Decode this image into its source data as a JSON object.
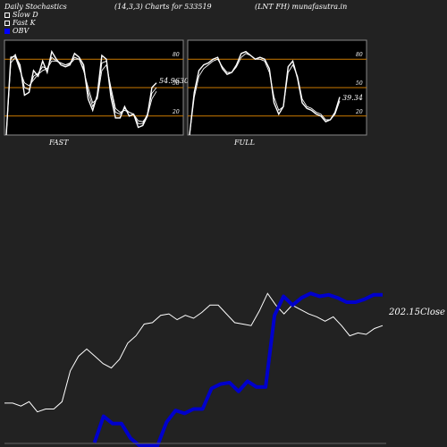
{
  "header": {
    "left": "Daily Stochastics",
    "middle": "(14,3,3) Charts for 533519",
    "right": "(LNT FH) munafasutra.in"
  },
  "legend": [
    {
      "label": "Slow  D",
      "color": "#ffffff"
    },
    {
      "label": "Fast K",
      "color": "#ffffff"
    },
    {
      "label": "OBV",
      "color": "#0000ff"
    }
  ],
  "colors": {
    "background": "#222222",
    "panel": "#000000",
    "level_line": "#cc7a00",
    "price": "#ffffff",
    "obv": "#0000cc"
  },
  "chart_data": [
    {
      "type": "line",
      "title": "FAST",
      "ylim": [
        0,
        100
      ],
      "levels": [
        20,
        50,
        80
      ],
      "tick_labels": [
        "80",
        "50",
        "20"
      ],
      "value_label": "54.9630",
      "series": [
        {
          "values": [
            0,
            82,
            83,
            74,
            42,
            45,
            68,
            62,
            78,
            66,
            88,
            80,
            74,
            72,
            74,
            86,
            82,
            74,
            38,
            26,
            42,
            84,
            80,
            40,
            18,
            18,
            30,
            20,
            22,
            8,
            10,
            20,
            50,
            55
          ]
        },
        {
          "values": [
            0,
            80,
            85,
            70,
            50,
            48,
            62,
            65,
            72,
            70,
            82,
            78,
            76,
            74,
            76,
            82,
            80,
            70,
            45,
            30,
            40,
            76,
            78,
            46,
            24,
            22,
            28,
            24,
            22,
            12,
            12,
            22,
            44,
            50
          ]
        },
        {
          "values": [
            0,
            76,
            82,
            68,
            55,
            52,
            58,
            64,
            68,
            70,
            78,
            78,
            76,
            74,
            75,
            80,
            80,
            68,
            50,
            34,
            38,
            68,
            74,
            50,
            28,
            24,
            26,
            24,
            22,
            15,
            14,
            20,
            38,
            46
          ]
        }
      ]
    },
    {
      "type": "line",
      "title": "FULL",
      "ylim": [
        0,
        100
      ],
      "levels": [
        20,
        50,
        80
      ],
      "tick_labels": [
        "80",
        "50",
        "20"
      ],
      "value_label": "39.34",
      "series": [
        {
          "values": [
            0,
            45,
            68,
            74,
            76,
            80,
            82,
            70,
            64,
            66,
            74,
            86,
            88,
            84,
            80,
            82,
            80,
            70,
            34,
            22,
            30,
            72,
            78,
            60,
            34,
            28,
            26,
            22,
            20,
            14,
            16,
            24,
            40
          ]
        },
        {
          "values": [
            0,
            40,
            62,
            70,
            74,
            78,
            80,
            72,
            66,
            66,
            72,
            82,
            86,
            84,
            80,
            80,
            78,
            66,
            40,
            26,
            30,
            66,
            74,
            62,
            38,
            30,
            28,
            24,
            22,
            16,
            16,
            22,
            36
          ]
        }
      ]
    },
    {
      "type": "line",
      "title": "",
      "close_label": "202.15Close",
      "series": [
        {
          "name": "Price",
          "values": [
            30,
            30,
            28,
            31,
            24,
            26,
            26,
            31,
            52,
            62,
            67,
            62,
            57,
            54,
            60,
            71,
            76,
            84,
            85,
            90,
            91,
            87,
            90,
            88,
            92,
            97,
            97,
            91,
            85,
            84,
            83,
            93,
            105,
            97,
            91,
            97,
            94,
            91,
            89,
            86,
            89,
            83,
            76,
            78,
            77,
            81,
            83
          ]
        },
        {
          "name": "OBV",
          "values": [
            null,
            null,
            null,
            null,
            null,
            null,
            null,
            null,
            null,
            null,
            3,
            21,
            16,
            16,
            6,
            1,
            1,
            1,
            17,
            25,
            23,
            26,
            26,
            40,
            43,
            44,
            38,
            45,
            41,
            41,
            90,
            103,
            97,
            102,
            105,
            103,
            104,
            102,
            99,
            99,
            101,
            104,
            104
          ]
        }
      ]
    }
  ]
}
